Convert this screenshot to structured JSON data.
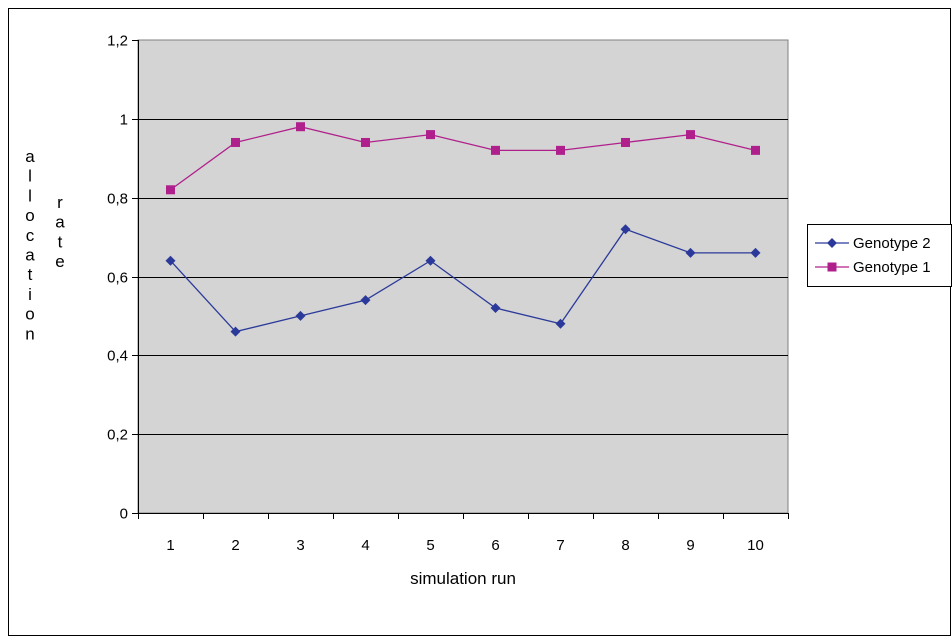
{
  "chart_data": {
    "type": "line",
    "title": "",
    "xlabel": "simulation run",
    "ylabel": "allocation rate",
    "ylabel_words": [
      "allocation",
      "rate"
    ],
    "categories": [
      "1",
      "2",
      "3",
      "4",
      "5",
      "6",
      "7",
      "8",
      "9",
      "10"
    ],
    "ylim": [
      0,
      1.2
    ],
    "yticks": [
      0,
      0.2,
      0.4,
      0.6,
      0.8,
      1,
      1.2
    ],
    "ytick_labels": [
      "0",
      "0,2",
      "0,4",
      "0,6",
      "0,8",
      "1",
      "1,2"
    ],
    "grid": true,
    "legend_position": "right",
    "plot_background": "#d4d4d4",
    "series": [
      {
        "name": "Genotype 2",
        "color": "#2b3a9a",
        "marker": "diamond",
        "values": [
          0.64,
          0.46,
          0.5,
          0.54,
          0.64,
          0.52,
          0.48,
          0.72,
          0.66,
          0.66
        ]
      },
      {
        "name": "Genotype 1",
        "color": "#b0208c",
        "marker": "square",
        "values": [
          0.82,
          0.94,
          0.98,
          0.94,
          0.96,
          0.92,
          0.92,
          0.94,
          0.96,
          0.92
        ]
      }
    ]
  }
}
